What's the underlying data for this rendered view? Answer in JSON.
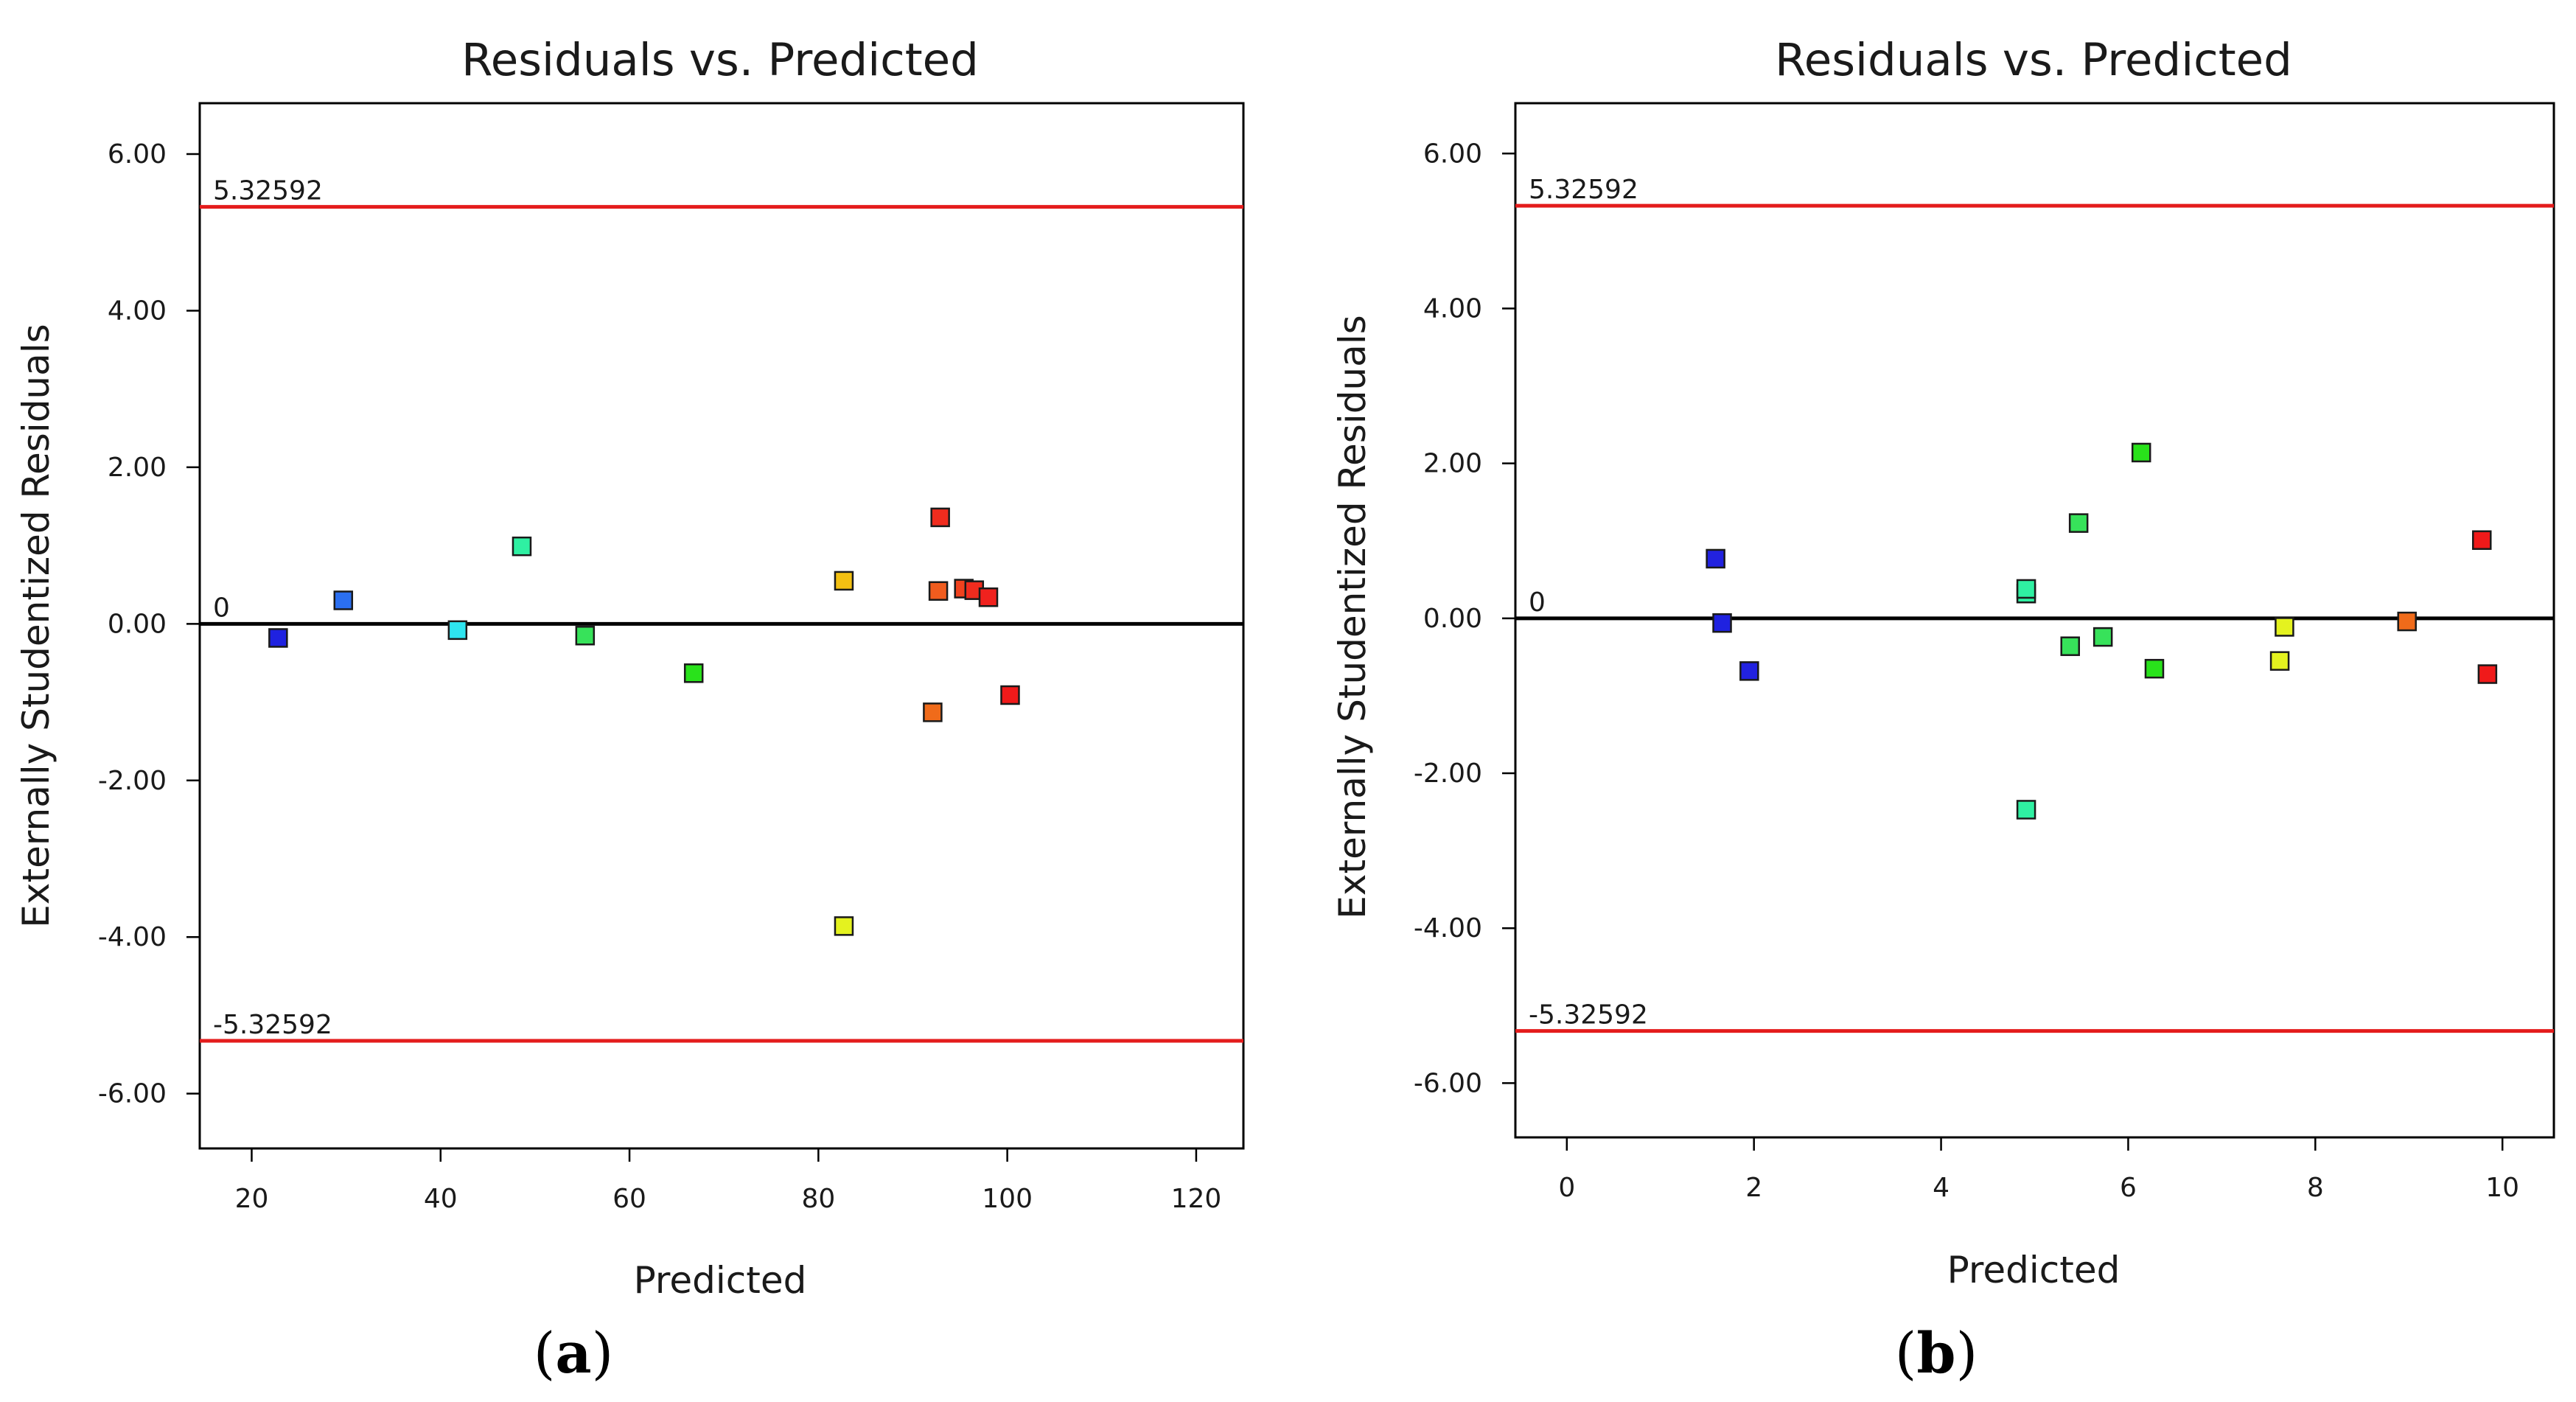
{
  "chart_data": [
    {
      "type": "scatter",
      "panel_label": "a",
      "title": "Residuals vs. Predicted",
      "xlabel": "Predicted",
      "ylabel": "Externally Studentized Residuals",
      "xlim": [
        14.5,
        125
      ],
      "ylim": [
        -6.7,
        6.65
      ],
      "xticks": [
        20,
        40,
        60,
        80,
        100,
        120
      ],
      "xtick_labels": [
        "20",
        "40",
        "60",
        "80",
        "100",
        "120"
      ],
      "yticks": [
        6,
        4,
        2,
        0,
        -2,
        -4,
        -6
      ],
      "ytick_labels": [
        "6.00",
        "4.00",
        "2.00",
        "0.00",
        "-2.00",
        "-4.00",
        "-6.00"
      ],
      "reference_lines": [
        {
          "value": 5.32592,
          "label": "5.32592",
          "color": "#e41c1c"
        },
        {
          "value": 0,
          "label": "0",
          "color": "#000000"
        },
        {
          "value": -5.32592,
          "label": "-5.32592",
          "color": "#e41c1c"
        }
      ],
      "points": [
        {
          "x": 22.8,
          "y": -0.18,
          "color": "#1f22e0"
        },
        {
          "x": 29.7,
          "y": 0.3,
          "color": "#2b6ff0"
        },
        {
          "x": 41.8,
          "y": -0.08,
          "color": "#2ee5f0"
        },
        {
          "x": 48.6,
          "y": 0.99,
          "color": "#2ff0a2"
        },
        {
          "x": 55.3,
          "y": -0.15,
          "color": "#37e25a"
        },
        {
          "x": 66.8,
          "y": -0.63,
          "color": "#29e21b"
        },
        {
          "x": 82.7,
          "y": 0.55,
          "color": "#f3c012"
        },
        {
          "x": 82.7,
          "y": -3.86,
          "color": "#e4f21f"
        },
        {
          "x": 92.1,
          "y": -1.13,
          "color": "#f06b1a"
        },
        {
          "x": 92.7,
          "y": 0.42,
          "color": "#f05c1e"
        },
        {
          "x": 92.9,
          "y": 1.36,
          "color": "#f02c1e"
        },
        {
          "x": 95.4,
          "y": 0.45,
          "color": "#f0421e"
        },
        {
          "x": 96.5,
          "y": 0.43,
          "color": "#f02c1e"
        },
        {
          "x": 98.0,
          "y": 0.34,
          "color": "#f0221e"
        },
        {
          "x": 100.3,
          "y": -0.91,
          "color": "#f01a1a"
        }
      ]
    },
    {
      "type": "scatter",
      "panel_label": "b",
      "title": "Residuals vs. Predicted",
      "xlabel": "Predicted",
      "ylabel": "Externally Studentized Residuals",
      "xlim": [
        -0.55,
        10.55
      ],
      "ylim": [
        -6.7,
        6.65
      ],
      "xticks": [
        0,
        2,
        4,
        6,
        8,
        10
      ],
      "xtick_labels": [
        "0",
        "2",
        "4",
        "6",
        "8",
        "10"
      ],
      "yticks": [
        6,
        4,
        2,
        0,
        -2,
        -4,
        -6
      ],
      "ytick_labels": [
        "6.00",
        "4.00",
        "2.00",
        "0.00",
        "-2.00",
        "-4.00",
        "-6.00"
      ],
      "reference_lines": [
        {
          "value": 5.32592,
          "label": "5.32592",
          "color": "#e41c1c"
        },
        {
          "value": 0,
          "label": "0",
          "color": "#000000"
        },
        {
          "value": -5.32592,
          "label": "-5.32592",
          "color": "#e41c1c"
        }
      ],
      "points": [
        {
          "x": 1.59,
          "y": 0.77,
          "color": "#2222e0"
        },
        {
          "x": 1.66,
          "y": -0.06,
          "color": "#1f22e0"
        },
        {
          "x": 1.95,
          "y": -0.68,
          "color": "#2222e0"
        },
        {
          "x": 4.91,
          "y": 0.32,
          "color": "#2ff0a2"
        },
        {
          "x": 4.91,
          "y": 0.38,
          "color": "#2ff0a2"
        },
        {
          "x": 4.91,
          "y": -2.47,
          "color": "#2ff0a2"
        },
        {
          "x": 5.38,
          "y": -0.36,
          "color": "#37e25a"
        },
        {
          "x": 5.47,
          "y": 1.23,
          "color": "#37e25a"
        },
        {
          "x": 5.73,
          "y": -0.24,
          "color": "#37e25a"
        },
        {
          "x": 6.14,
          "y": 2.14,
          "color": "#29e21b"
        },
        {
          "x": 6.28,
          "y": -0.65,
          "color": "#29e21b"
        },
        {
          "x": 7.62,
          "y": -0.55,
          "color": "#e4f21f"
        },
        {
          "x": 7.67,
          "y": -0.11,
          "color": "#e4f21f"
        },
        {
          "x": 8.98,
          "y": -0.04,
          "color": "#f06b1a"
        },
        {
          "x": 9.78,
          "y": 1.01,
          "color": "#f01a1a"
        },
        {
          "x": 9.84,
          "y": -0.72,
          "color": "#f01a1a"
        }
      ]
    }
  ]
}
